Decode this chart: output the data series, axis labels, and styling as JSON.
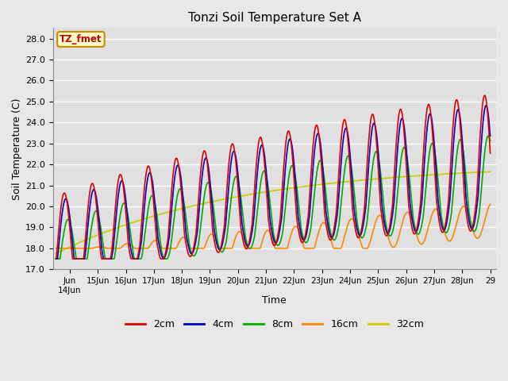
{
  "title": "Tonzi Soil Temperature Set A",
  "xlabel": "Time",
  "ylabel": "Soil Temperature (C)",
  "ylim": [
    17.0,
    28.5
  ],
  "yticks": [
    17.0,
    18.0,
    19.0,
    20.0,
    21.0,
    22.0,
    23.0,
    24.0,
    25.0,
    26.0,
    27.0,
    28.0
  ],
  "label_box_text": "TZ_fmet",
  "label_box_color": "#ffffcc",
  "label_box_text_color": "#cc0000",
  "label_box_edge_color": "#cc8800",
  "series_colors": [
    "#dd0000",
    "#0000cc",
    "#00aa00",
    "#ff8800",
    "#cccc00"
  ],
  "series_labels": [
    "2cm",
    "4cm",
    "8cm",
    "16cm",
    "32cm"
  ],
  "fig_facecolor": "#e8e8e8",
  "plot_bg_color": "#e0e0e0",
  "grid_color": "#ffffff",
  "start_day": 13.5,
  "end_day": 29.0,
  "n_points": 720
}
